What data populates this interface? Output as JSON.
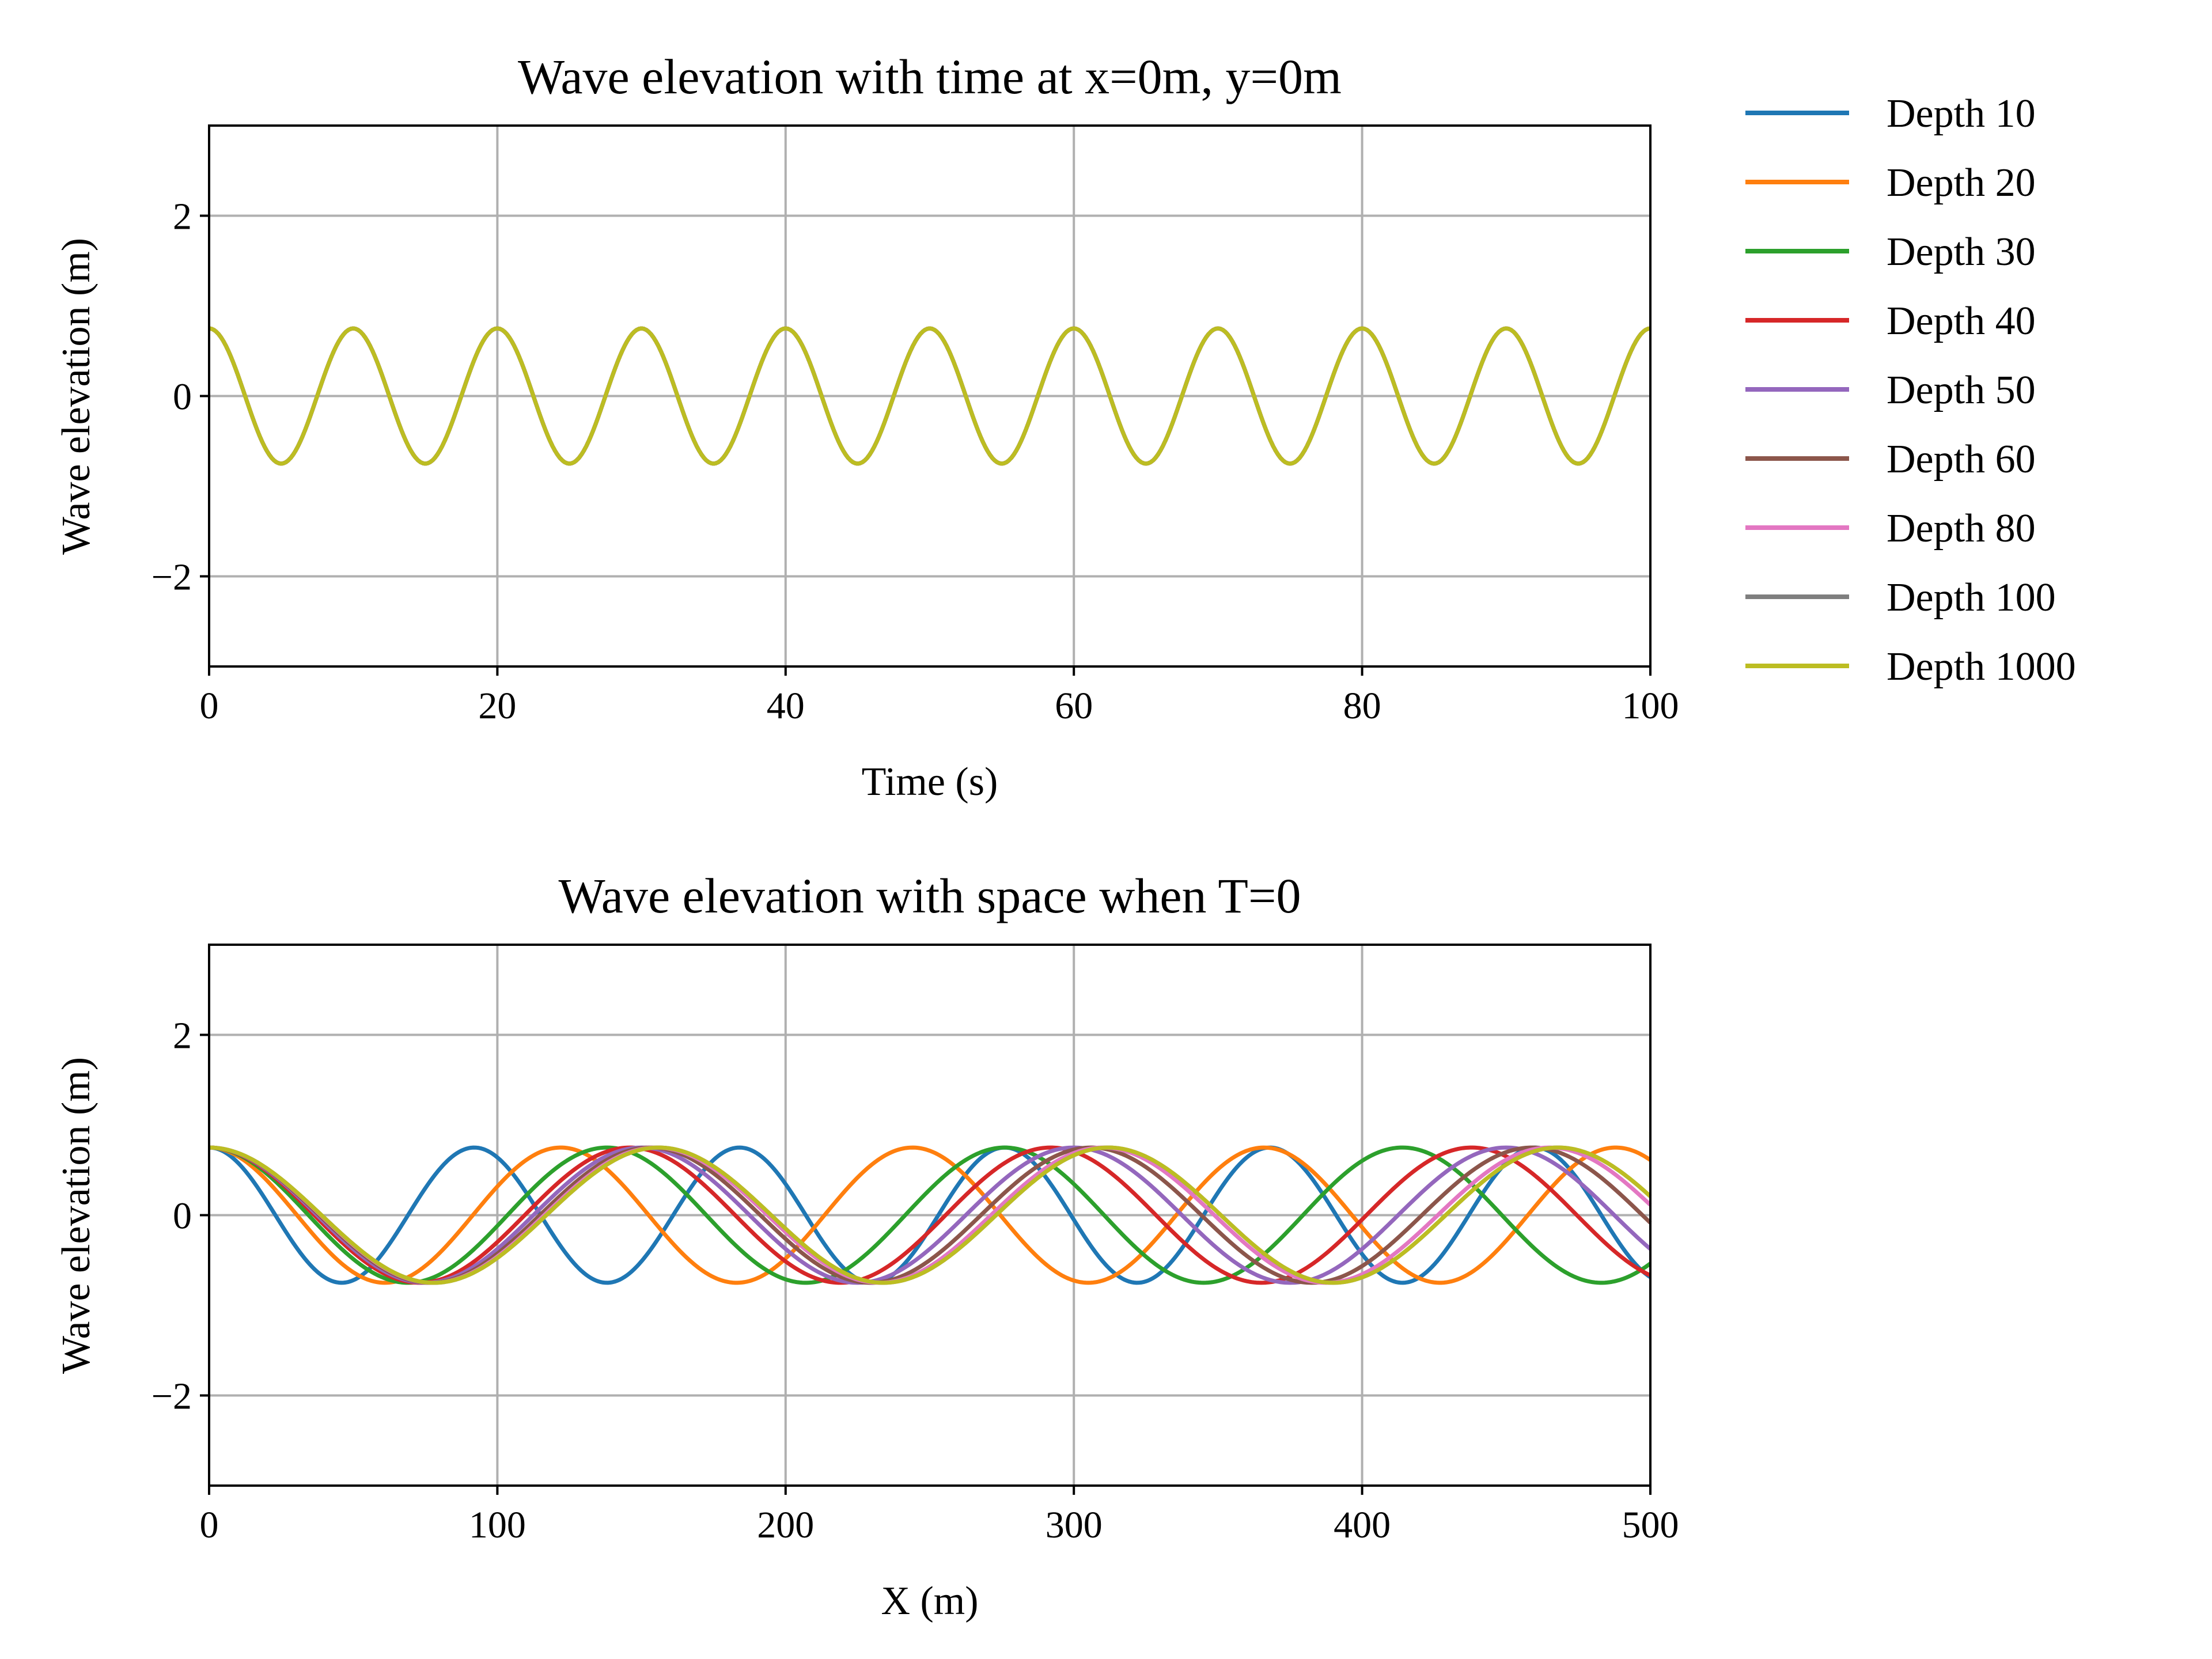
{
  "chart_data": [
    {
      "type": "line",
      "title": "Wave elevation with time at x=0m, y=0m",
      "xlabel": "Time (s)",
      "ylabel": "Wave elevation (m)",
      "xlim": [
        0,
        100
      ],
      "ylim": [
        -3,
        3
      ],
      "xticks": [
        0,
        20,
        40,
        60,
        80,
        100
      ],
      "xtick_labels": [
        "0",
        "20",
        "40",
        "60",
        "80",
        "100"
      ],
      "yticks": [
        -2,
        0,
        2
      ],
      "ytick_labels": [
        "−2",
        "0",
        "2"
      ],
      "grid": true,
      "amplitude": 0.75,
      "period_s": 10,
      "series": [
        {
          "name": "Depth 10",
          "color": "#1f77b4"
        },
        {
          "name": "Depth 20",
          "color": "#ff7f0e"
        },
        {
          "name": "Depth 30",
          "color": "#2ca02c"
        },
        {
          "name": "Depth 40",
          "color": "#d62728"
        },
        {
          "name": "Depth 50",
          "color": "#9467bd"
        },
        {
          "name": "Depth 60",
          "color": "#8c564b"
        },
        {
          "name": "Depth 80",
          "color": "#e377c2"
        },
        {
          "name": "Depth 100",
          "color": "#7f7f7f"
        },
        {
          "name": "Depth 1000",
          "color": "#bcbd22"
        }
      ]
    },
    {
      "type": "line",
      "title": "Wave elevation with space when T=0",
      "xlabel": "X (m)",
      "ylabel": "Wave elevation (m)",
      "xlim": [
        0,
        500
      ],
      "ylim": [
        -3,
        3
      ],
      "xticks": [
        0,
        100,
        200,
        300,
        400,
        500
      ],
      "xtick_labels": [
        "0",
        "100",
        "200",
        "300",
        "400",
        "500"
      ],
      "yticks": [
        -2,
        0,
        2
      ],
      "ytick_labels": [
        "−2",
        "0",
        "2"
      ],
      "grid": true,
      "amplitude": 0.75,
      "series": [
        {
          "name": "Depth 10",
          "color": "#1f77b4",
          "wavelength_m": 92
        },
        {
          "name": "Depth 20",
          "color": "#ff7f0e",
          "wavelength_m": 122
        },
        {
          "name": "Depth 30",
          "color": "#2ca02c",
          "wavelength_m": 138
        },
        {
          "name": "Depth 40",
          "color": "#d62728",
          "wavelength_m": 146
        },
        {
          "name": "Depth 50",
          "color": "#9467bd",
          "wavelength_m": 150
        },
        {
          "name": "Depth 60",
          "color": "#8c564b",
          "wavelength_m": 153
        },
        {
          "name": "Depth 80",
          "color": "#e377c2",
          "wavelength_m": 155
        },
        {
          "name": "Depth 100",
          "color": "#7f7f7f",
          "wavelength_m": 156
        },
        {
          "name": "Depth 1000",
          "color": "#bcbd22",
          "wavelength_m": 156
        }
      ]
    }
  ],
  "legend": {
    "placement": "right, outside top plot",
    "entries": [
      {
        "label": "Depth 10",
        "color": "#1f77b4"
      },
      {
        "label": "Depth 20",
        "color": "#ff7f0e"
      },
      {
        "label": "Depth 30",
        "color": "#2ca02c"
      },
      {
        "label": "Depth 40",
        "color": "#d62728"
      },
      {
        "label": "Depth 50",
        "color": "#9467bd"
      },
      {
        "label": "Depth 60",
        "color": "#8c564b"
      },
      {
        "label": "Depth 80",
        "color": "#e377c2"
      },
      {
        "label": "Depth 100",
        "color": "#7f7f7f"
      },
      {
        "label": "Depth 1000",
        "color": "#bcbd22"
      }
    ]
  }
}
